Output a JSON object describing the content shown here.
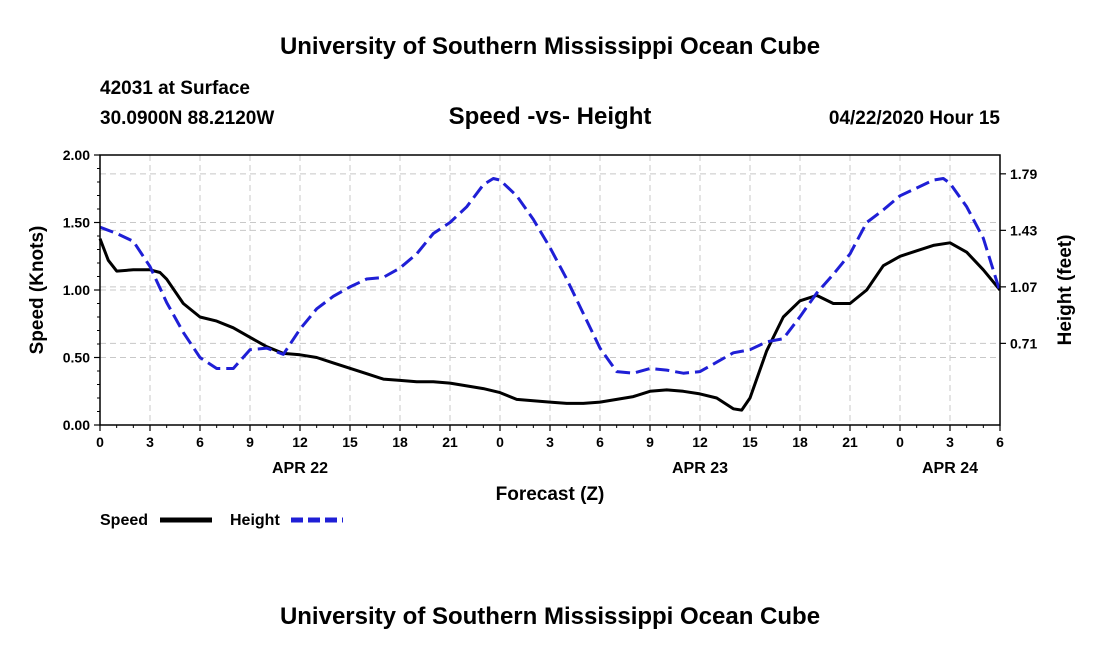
{
  "header": {
    "title": "University of Southern Mississippi Ocean Cube",
    "station": "42031 at Surface",
    "coords": "30.0900N 88.2120W",
    "datetime": "04/22/2020 Hour 15"
  },
  "footer": {
    "title": "University of Southern Mississippi Ocean Cube"
  },
  "chart_data": {
    "type": "line",
    "title": "Speed -vs- Height",
    "xlabel": "Forecast (Z)",
    "ylabel_left": "Speed (Knots)",
    "ylabel_right": "Height (feet)",
    "x_range": [
      0,
      54
    ],
    "ylim_left": [
      0,
      2.0
    ],
    "ylim_right": [
      0.19,
      1.91
    ],
    "grid": true,
    "legend_position": "bottom-left",
    "x_tick_values": [
      0,
      3,
      6,
      9,
      12,
      15,
      18,
      21,
      24,
      27,
      30,
      33,
      36,
      39,
      42,
      45,
      48,
      51,
      54
    ],
    "x_tick_labels": [
      "0",
      "3",
      "6",
      "9",
      "12",
      "15",
      "18",
      "21",
      "0",
      "3",
      "6",
      "9",
      "12",
      "15",
      "18",
      "21",
      "0",
      "3",
      "6"
    ],
    "date_labels": [
      {
        "x": 12,
        "label": "APR 22"
      },
      {
        "x": 36,
        "label": "APR 23"
      },
      {
        "x": 51,
        "label": "APR 24"
      }
    ],
    "y_left_ticks": [
      0,
      0.5,
      1.0,
      1.5,
      2.0
    ],
    "y_left_tick_labels": [
      "0.00",
      "0.50",
      "1.00",
      "1.50",
      "2.00"
    ],
    "y_right_ticks": [
      0.71,
      1.07,
      1.43,
      1.79
    ],
    "y_right_tick_labels": [
      "0.71",
      "1.07",
      "1.43",
      "1.79"
    ],
    "series": [
      {
        "name": "Speed",
        "axis": "left",
        "color": "#000000",
        "dash": "solid",
        "x": [
          0,
          0.5,
          1,
          2,
          3,
          3.6,
          4,
          5,
          6,
          7,
          8,
          9,
          10,
          11,
          12,
          13,
          14,
          15,
          16,
          17,
          18,
          19,
          20,
          21,
          22,
          23,
          24,
          25,
          26,
          27,
          28,
          29,
          30,
          31,
          32,
          33,
          34,
          35,
          36,
          37,
          38,
          38.5,
          39,
          40,
          41,
          42,
          43,
          44,
          45,
          46,
          47,
          48,
          49,
          50,
          51,
          52,
          53,
          54
        ],
        "y": [
          1.38,
          1.22,
          1.14,
          1.15,
          1.15,
          1.13,
          1.08,
          0.9,
          0.8,
          0.77,
          0.72,
          0.65,
          0.58,
          0.53,
          0.52,
          0.5,
          0.46,
          0.42,
          0.38,
          0.34,
          0.33,
          0.32,
          0.32,
          0.31,
          0.29,
          0.27,
          0.24,
          0.19,
          0.18,
          0.17,
          0.16,
          0.16,
          0.17,
          0.19,
          0.21,
          0.25,
          0.26,
          0.25,
          0.23,
          0.2,
          0.12,
          0.11,
          0.2,
          0.55,
          0.8,
          0.92,
          0.96,
          0.9,
          0.9,
          1.0,
          1.18,
          1.25,
          1.29,
          1.33,
          1.35,
          1.28,
          1.15,
          1.0
        ]
      },
      {
        "name": "Height",
        "axis": "right",
        "color": "#1f1fd6",
        "dash": "dashed",
        "x": [
          0,
          1,
          2,
          3,
          4,
          5,
          6,
          7,
          8,
          9,
          10,
          11,
          12,
          13,
          14,
          15,
          16,
          17,
          18,
          19,
          20,
          21,
          22,
          23,
          23.6,
          24,
          25,
          26,
          27,
          28,
          29,
          30,
          31,
          32,
          33,
          34,
          35,
          36,
          37,
          38,
          39,
          40,
          41,
          42,
          43,
          44,
          45,
          46,
          47,
          48,
          49,
          50,
          50.6,
          51,
          52,
          53,
          54
        ],
        "y": [
          1.45,
          1.41,
          1.36,
          1.2,
          0.97,
          0.78,
          0.62,
          0.55,
          0.55,
          0.67,
          0.68,
          0.64,
          0.8,
          0.93,
          1.01,
          1.07,
          1.12,
          1.13,
          1.19,
          1.28,
          1.41,
          1.48,
          1.58,
          1.72,
          1.76,
          1.75,
          1.65,
          1.5,
          1.32,
          1.12,
          0.9,
          0.68,
          0.53,
          0.52,
          0.55,
          0.54,
          0.52,
          0.53,
          0.59,
          0.65,
          0.67,
          0.72,
          0.74,
          0.88,
          1.03,
          1.15,
          1.28,
          1.48,
          1.56,
          1.65,
          1.7,
          1.75,
          1.76,
          1.73,
          1.58,
          1.38,
          1.04
        ]
      }
    ]
  }
}
